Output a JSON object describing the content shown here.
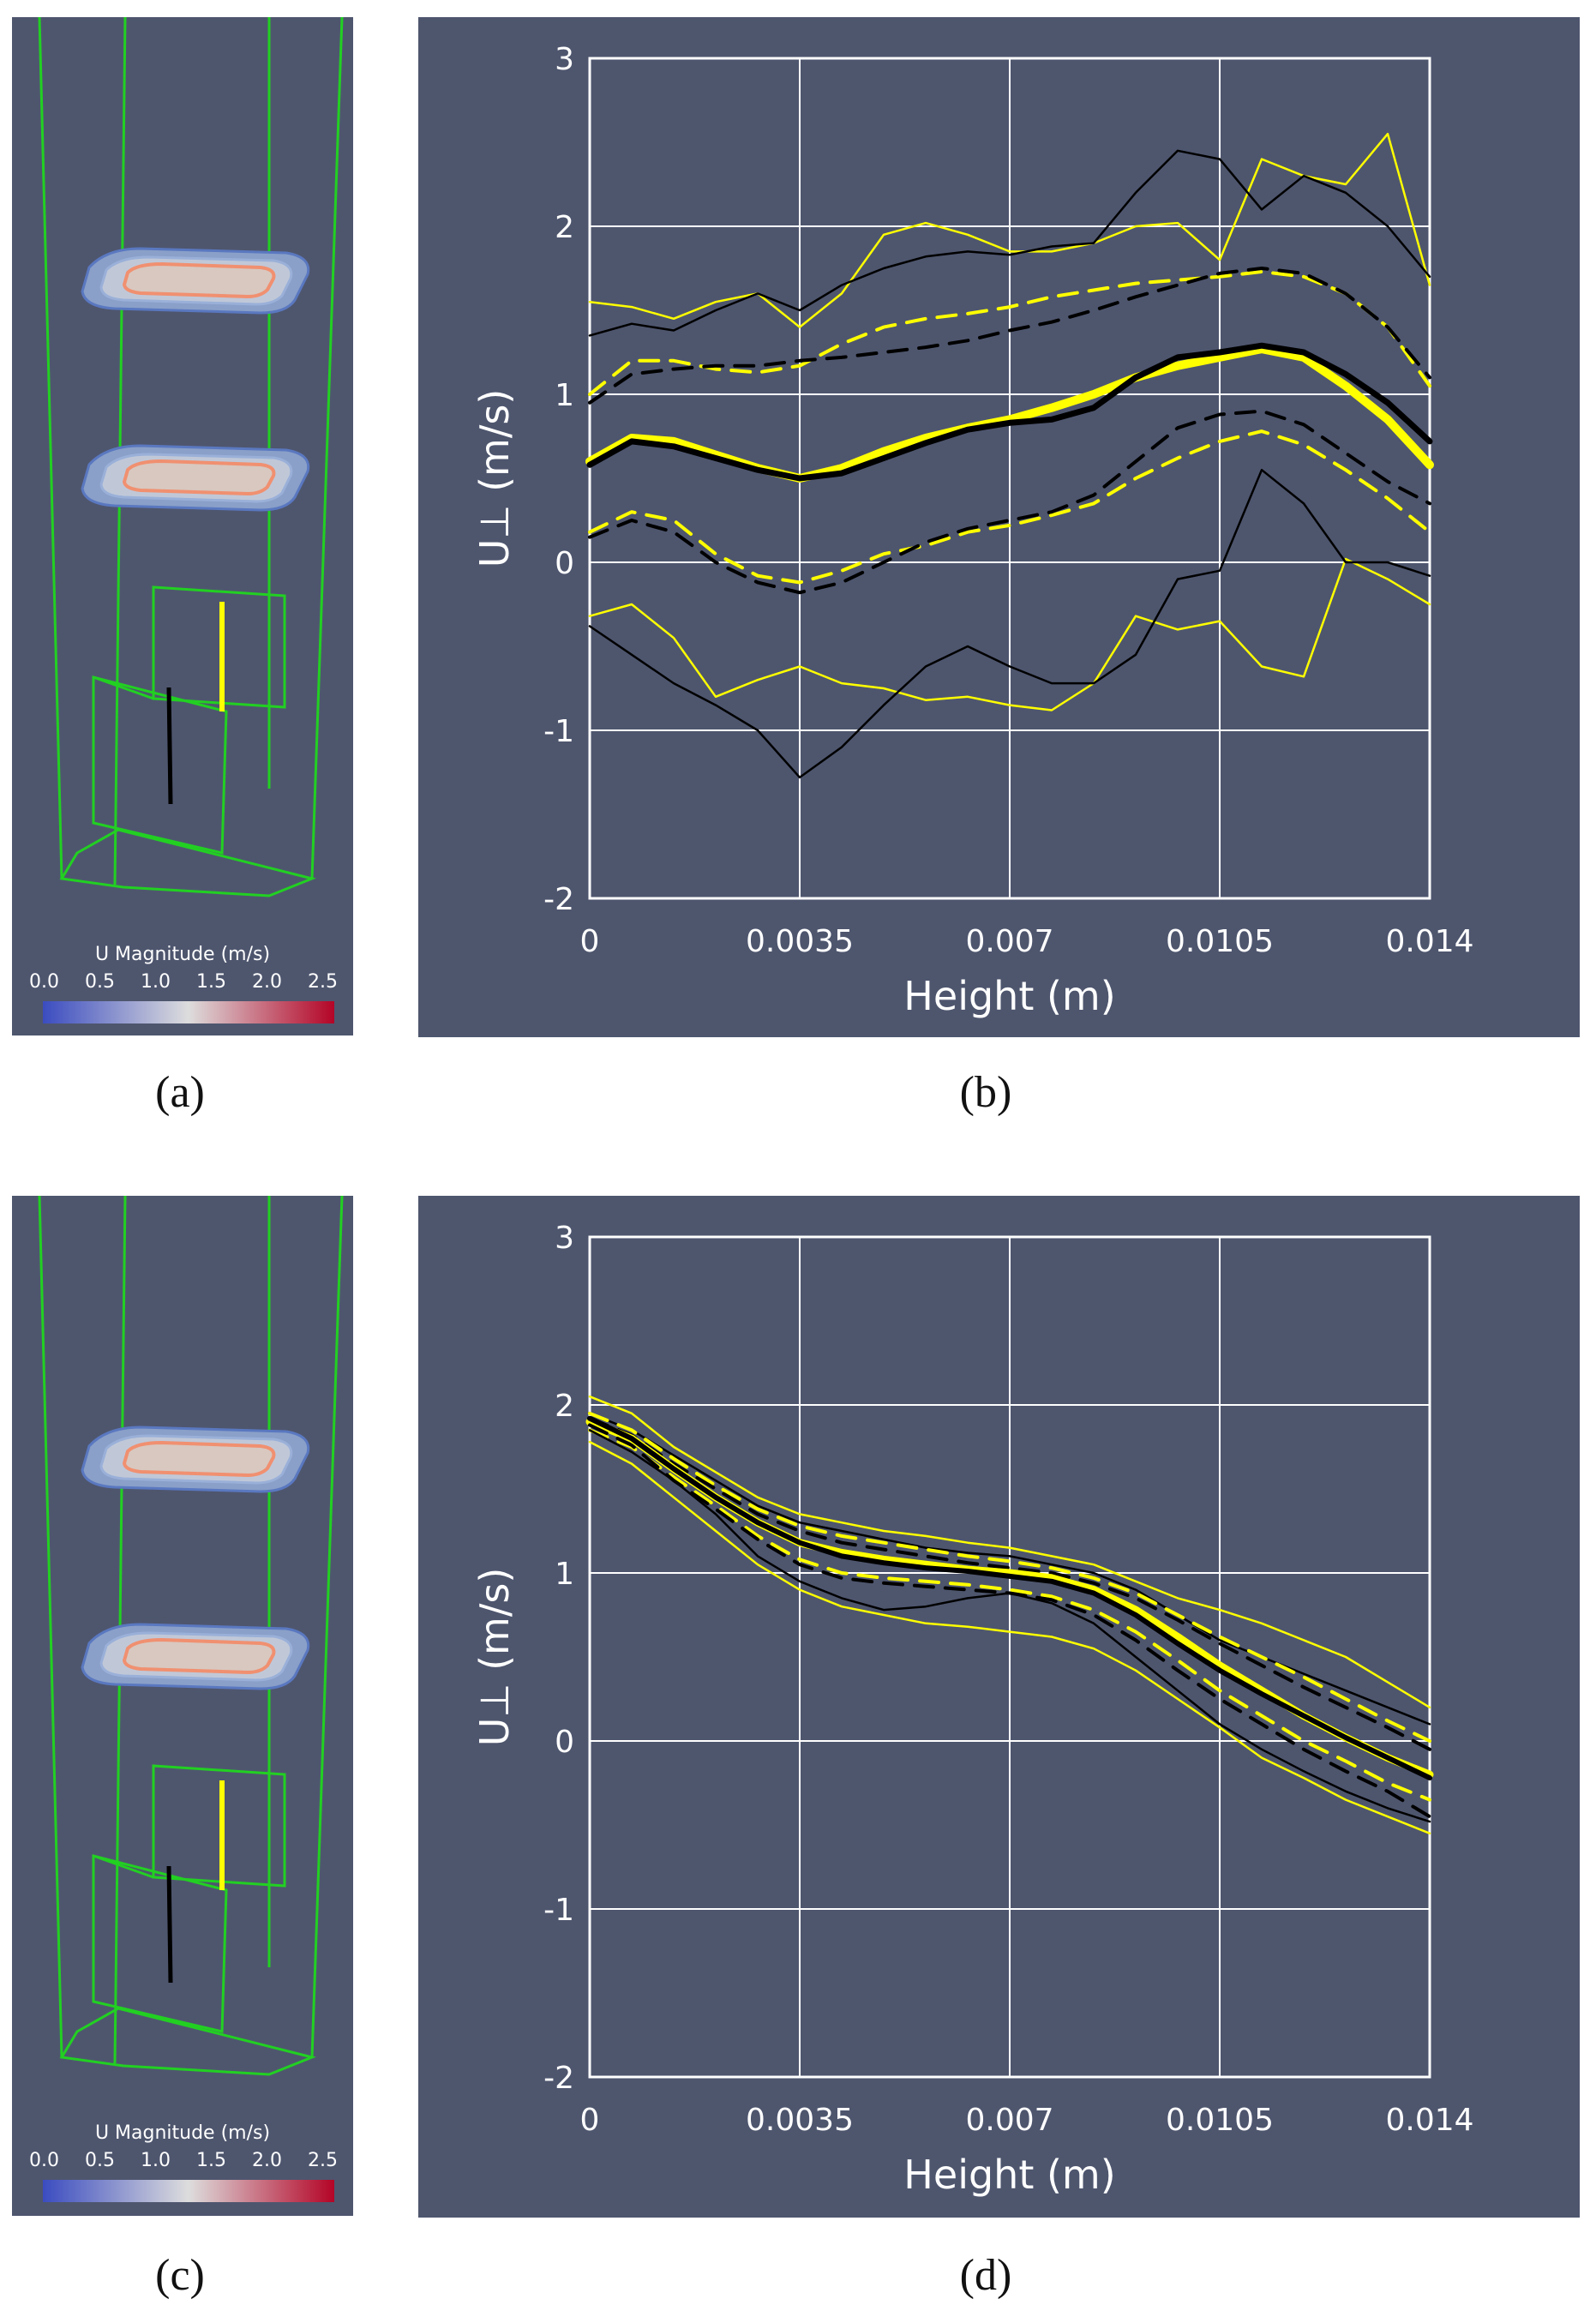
{
  "captions": {
    "a": "(a)",
    "b": "(b)",
    "c": "(c)",
    "d": "(d)"
  },
  "colorbar": {
    "title": "U Magnitude (m/s)",
    "ticks": [
      "0.0",
      "0.5",
      "1.0",
      "1.5",
      "2.0",
      "2.5"
    ],
    "colors": [
      "#3b4cc0",
      "#dddddd",
      "#b40426"
    ]
  },
  "colors": {
    "background": "#4e566e",
    "wire": "#22d022",
    "yellow": "#ffff00",
    "black": "#000000",
    "grid": "#ffffff"
  },
  "chart_data": [
    {
      "id": "b",
      "type": "line",
      "xlabel": "Height (m)",
      "ylabel": "U⊥ (m/s)",
      "x_ticks": [
        "0",
        "0.0035",
        "0.007",
        "0.0105",
        "0.014"
      ],
      "y_ticks": [
        "3",
        "2",
        "1",
        "0",
        "-1",
        "-2"
      ],
      "xlim": [
        0,
        0.014
      ],
      "ylim": [
        -2,
        3
      ],
      "x": [
        0,
        0.0007,
        0.0014,
        0.0021,
        0.0028,
        0.0035,
        0.0042,
        0.0049,
        0.0056,
        0.0063,
        0.007,
        0.0077,
        0.0084,
        0.0091,
        0.0098,
        0.0105,
        0.0112,
        0.0119,
        0.0126,
        0.0133,
        0.014
      ],
      "series": [
        {
          "name": "yellow mean",
          "color": "yellow",
          "width": 10,
          "dash": false,
          "values": [
            0.6,
            0.74,
            0.72,
            0.64,
            0.56,
            0.5,
            0.56,
            0.66,
            0.74,
            0.8,
            0.85,
            0.92,
            1.0,
            1.1,
            1.17,
            1.22,
            1.27,
            1.22,
            1.05,
            0.85,
            0.58
          ]
        },
        {
          "name": "black mean",
          "color": "black",
          "width": 7,
          "dash": false,
          "values": [
            0.58,
            0.72,
            0.69,
            0.62,
            0.55,
            0.5,
            0.53,
            0.62,
            0.71,
            0.79,
            0.83,
            0.85,
            0.92,
            1.1,
            1.22,
            1.25,
            1.29,
            1.25,
            1.12,
            0.95,
            0.72
          ]
        },
        {
          "name": "yellow +sd",
          "color": "yellow",
          "width": 4,
          "dash": true,
          "values": [
            1.0,
            1.2,
            1.2,
            1.15,
            1.13,
            1.17,
            1.3,
            1.4,
            1.45,
            1.48,
            1.52,
            1.58,
            1.62,
            1.66,
            1.68,
            1.7,
            1.73,
            1.7,
            1.6,
            1.4,
            1.05
          ]
        },
        {
          "name": "black +sd",
          "color": "black",
          "width": 4,
          "dash": true,
          "values": [
            0.95,
            1.12,
            1.15,
            1.17,
            1.17,
            1.2,
            1.22,
            1.25,
            1.28,
            1.32,
            1.38,
            1.43,
            1.5,
            1.58,
            1.65,
            1.72,
            1.75,
            1.72,
            1.6,
            1.4,
            1.1
          ]
        },
        {
          "name": "yellow -sd",
          "color": "yellow",
          "width": 4,
          "dash": true,
          "values": [
            0.18,
            0.3,
            0.25,
            0.05,
            -0.08,
            -0.12,
            -0.05,
            0.05,
            0.1,
            0.18,
            0.22,
            0.28,
            0.35,
            0.5,
            0.62,
            0.72,
            0.78,
            0.7,
            0.55,
            0.38,
            0.18
          ]
        },
        {
          "name": "black -sd",
          "color": "black",
          "width": 4,
          "dash": true,
          "values": [
            0.15,
            0.25,
            0.18,
            0.0,
            -0.12,
            -0.18,
            -0.12,
            0.0,
            0.12,
            0.2,
            0.25,
            0.3,
            0.4,
            0.6,
            0.8,
            0.88,
            0.9,
            0.82,
            0.65,
            0.48,
            0.35
          ]
        },
        {
          "name": "yellow max",
          "color": "yellow",
          "width": 2.5,
          "dash": false,
          "values": [
            1.55,
            1.52,
            1.45,
            1.55,
            1.6,
            1.4,
            1.6,
            1.95,
            2.02,
            1.95,
            1.85,
            1.85,
            1.9,
            2.0,
            2.02,
            1.8,
            2.4,
            2.3,
            2.25,
            2.55,
            1.65
          ]
        },
        {
          "name": "black max",
          "color": "black",
          "width": 2.5,
          "dash": false,
          "values": [
            1.35,
            1.42,
            1.38,
            1.5,
            1.6,
            1.5,
            1.65,
            1.75,
            1.82,
            1.85,
            1.83,
            1.88,
            1.9,
            2.2,
            2.45,
            2.4,
            2.1,
            2.3,
            2.2,
            2.0,
            1.7
          ]
        },
        {
          "name": "yellow min",
          "color": "yellow",
          "width": 2.5,
          "dash": false,
          "values": [
            -0.32,
            -0.25,
            -0.45,
            -0.8,
            -0.7,
            -0.62,
            -0.72,
            -0.75,
            -0.82,
            -0.8,
            -0.85,
            -0.88,
            -0.72,
            -0.32,
            -0.4,
            -0.35,
            -0.62,
            -0.68,
            0.02,
            -0.1,
            -0.25
          ]
        },
        {
          "name": "black min",
          "color": "black",
          "width": 2.5,
          "dash": false,
          "values": [
            -0.38,
            -0.55,
            -0.72,
            -0.85,
            -1.0,
            -1.28,
            -1.1,
            -0.85,
            -0.62,
            -0.5,
            -0.62,
            -0.72,
            -0.72,
            -0.55,
            -0.1,
            -0.05,
            0.55,
            0.35,
            0.0,
            0.0,
            -0.08
          ]
        }
      ]
    },
    {
      "id": "d",
      "type": "line",
      "xlabel": "Height (m)",
      "ylabel": "U⊥ (m/s)",
      "x_ticks": [
        "0",
        "0.0035",
        "0.007",
        "0.0105",
        "0.014"
      ],
      "y_ticks": [
        "3",
        "2",
        "1",
        "0",
        "-1",
        "-2"
      ],
      "xlim": [
        0,
        0.014
      ],
      "ylim": [
        -2,
        3
      ],
      "x": [
        0,
        0.0007,
        0.0014,
        0.0021,
        0.0028,
        0.0035,
        0.0042,
        0.0049,
        0.0056,
        0.0063,
        0.007,
        0.0077,
        0.0084,
        0.0091,
        0.0098,
        0.0105,
        0.0112,
        0.0119,
        0.0126,
        0.0133,
        0.014
      ],
      "series": [
        {
          "name": "yellow max",
          "color": "yellow",
          "width": 2.5,
          "dash": false,
          "values": [
            2.05,
            1.95,
            1.75,
            1.6,
            1.45,
            1.35,
            1.3,
            1.25,
            1.22,
            1.18,
            1.15,
            1.1,
            1.05,
            0.95,
            0.85,
            0.78,
            0.7,
            0.6,
            0.5,
            0.35,
            0.2
          ]
        },
        {
          "name": "black max",
          "color": "black",
          "width": 2.5,
          "dash": false,
          "values": [
            1.95,
            1.85,
            1.7,
            1.55,
            1.4,
            1.3,
            1.25,
            1.2,
            1.15,
            1.12,
            1.1,
            1.05,
            1.0,
            0.9,
            0.75,
            0.6,
            0.5,
            0.4,
            0.3,
            0.2,
            0.1
          ]
        },
        {
          "name": "yellow +sd",
          "color": "yellow",
          "width": 4,
          "dash": true,
          "values": [
            1.95,
            1.85,
            1.68,
            1.52,
            1.38,
            1.28,
            1.22,
            1.18,
            1.14,
            1.1,
            1.07,
            1.03,
            0.97,
            0.88,
            0.75,
            0.62,
            0.5,
            0.38,
            0.25,
            0.12,
            0.0
          ]
        },
        {
          "name": "black +sd",
          "color": "black",
          "width": 4,
          "dash": true,
          "values": [
            1.92,
            1.82,
            1.65,
            1.5,
            1.35,
            1.25,
            1.18,
            1.14,
            1.1,
            1.06,
            1.03,
            1.0,
            0.94,
            0.85,
            0.72,
            0.58,
            0.45,
            0.32,
            0.2,
            0.08,
            -0.05
          ]
        },
        {
          "name": "yellow mean",
          "color": "yellow",
          "width": 9,
          "dash": false,
          "values": [
            1.9,
            1.8,
            1.62,
            1.45,
            1.3,
            1.18,
            1.12,
            1.08,
            1.05,
            1.02,
            1.0,
            0.97,
            0.9,
            0.78,
            0.62,
            0.45,
            0.3,
            0.15,
            0.02,
            -0.1,
            -0.2
          ]
        },
        {
          "name": "black mean",
          "color": "black",
          "width": 6,
          "dash": false,
          "values": [
            1.92,
            1.8,
            1.62,
            1.45,
            1.3,
            1.18,
            1.1,
            1.06,
            1.03,
            1.01,
            0.98,
            0.95,
            0.88,
            0.75,
            0.58,
            0.42,
            0.28,
            0.15,
            0.02,
            -0.1,
            -0.22
          ]
        },
        {
          "name": "yellow -sd",
          "color": "yellow",
          "width": 4,
          "dash": true,
          "values": [
            1.85,
            1.75,
            1.57,
            1.4,
            1.22,
            1.08,
            1.0,
            0.97,
            0.95,
            0.93,
            0.9,
            0.86,
            0.78,
            0.65,
            0.48,
            0.3,
            0.15,
            0.0,
            -0.12,
            -0.25,
            -0.35
          ]
        },
        {
          "name": "black -sd",
          "color": "black",
          "width": 4,
          "dash": true,
          "values": [
            1.88,
            1.76,
            1.55,
            1.38,
            1.2,
            1.05,
            0.97,
            0.94,
            0.92,
            0.9,
            0.88,
            0.84,
            0.75,
            0.6,
            0.42,
            0.25,
            0.1,
            -0.05,
            -0.18,
            -0.3,
            -0.45
          ]
        },
        {
          "name": "yellow min",
          "color": "yellow",
          "width": 2.5,
          "dash": false,
          "values": [
            1.78,
            1.65,
            1.45,
            1.25,
            1.05,
            0.9,
            0.8,
            0.75,
            0.7,
            0.68,
            0.65,
            0.62,
            0.55,
            0.42,
            0.25,
            0.08,
            -0.1,
            -0.22,
            -0.35,
            -0.45,
            -0.55
          ]
        },
        {
          "name": "black min",
          "color": "black",
          "width": 2.5,
          "dash": false,
          "values": [
            1.85,
            1.72,
            1.55,
            1.35,
            1.1,
            0.95,
            0.85,
            0.78,
            0.8,
            0.85,
            0.88,
            0.82,
            0.7,
            0.5,
            0.3,
            0.1,
            -0.05,
            -0.18,
            -0.3,
            -0.4,
            -0.48
          ]
        }
      ]
    }
  ]
}
